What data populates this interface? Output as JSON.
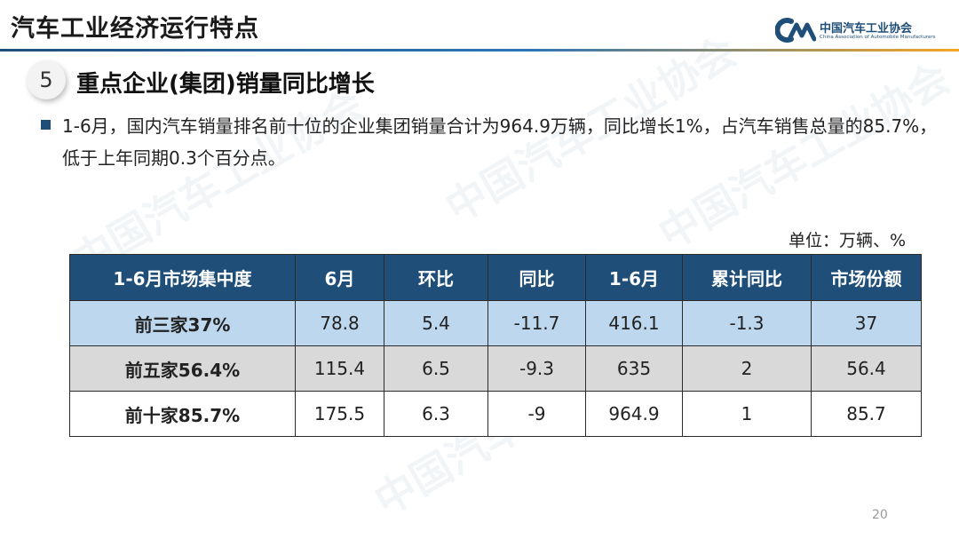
{
  "header": {
    "title": "汽车工业经济运行特点",
    "logo_cn": "中国汽车工业协会",
    "logo_en": "China Association of Automobile Manufacturers"
  },
  "section": {
    "number": "5",
    "title": "重点企业(集团)销量同比增长"
  },
  "bullet": {
    "text": "1-6月，国内汽车销量排名前十位的企业集团销量合计为964.9万辆，同比增长1%，占汽车销售总量的85.7%，低于上年同期0.3个百分点。"
  },
  "unit": "单位：万辆、%",
  "table": {
    "headers": [
      "1-6月市场集中度",
      "6月",
      "环比",
      "同比",
      "1-6月",
      "累计同比",
      "市场份额"
    ],
    "rows": [
      [
        "前三家37%",
        "78.8",
        "5.4",
        "-11.7",
        "416.1",
        "-1.3",
        "37"
      ],
      [
        "前五家56.4%",
        "115.4",
        "6.5",
        "-9.3",
        "635",
        "2",
        "56.4"
      ],
      [
        "前十家85.7%",
        "175.5",
        "6.3",
        "-9",
        "964.9",
        "1",
        "85.7"
      ]
    ]
  },
  "page_number": "20",
  "colors": {
    "header_fill": "#1f4e79",
    "row1_fill": "#bdd7ee",
    "row2_fill": "#d9d9d9",
    "row3_fill": "#ffffff",
    "accent_orange": "#f5a623"
  }
}
